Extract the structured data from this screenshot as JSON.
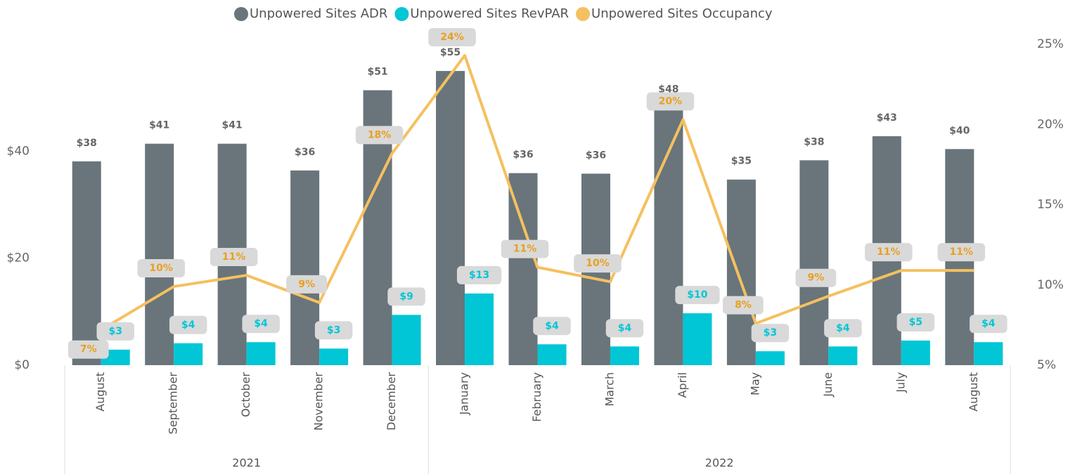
{
  "chart_data": {
    "type": "combo",
    "categories": [
      "August",
      "September",
      "October",
      "November",
      "December",
      "January",
      "February",
      "March",
      "April",
      "May",
      "June",
      "July",
      "August"
    ],
    "x_groups": [
      {
        "label": "2021",
        "count": 5
      },
      {
        "label": "2022",
        "count": 8
      }
    ],
    "series": [
      {
        "name": "Unpowered Sites ADR",
        "type": "bar",
        "color": "#69757a",
        "values": [
          38.1,
          41.4,
          41.4,
          36.4,
          51.4,
          55.0,
          35.9,
          35.8,
          48.1,
          34.7,
          38.3,
          42.8,
          40.4
        ],
        "value_labels": [
          "$38",
          "$41",
          "$41",
          "$36",
          "$51",
          "$55",
          "$36",
          "$36",
          "$48",
          "$35",
          "$38",
          "$43",
          "$40"
        ]
      },
      {
        "name": "Unpowered Sites RevPAR",
        "type": "bar",
        "color": "#00c6d6",
        "values": [
          2.9,
          4.1,
          4.3,
          3.1,
          9.4,
          13.4,
          3.9,
          3.5,
          9.7,
          2.6,
          3.5,
          4.6,
          4.3
        ],
        "value_labels": [
          "$3",
          "$4",
          "$4",
          "$3",
          "$9",
          "$13",
          "$4",
          "$4",
          "$10",
          "$3",
          "$4",
          "$5",
          "$4"
        ]
      },
      {
        "name": "Unpowered Sites Occupancy",
        "type": "line",
        "axis": "y2",
        "color": "#f5c060",
        "values": [
          7.2,
          9.9,
          10.6,
          8.9,
          18.2,
          24.3,
          11.1,
          10.2,
          20.3,
          7.6,
          9.3,
          10.9,
          10.9
        ],
        "value_labels": [
          "7%",
          "10%",
          "11%",
          "9%",
          "18%",
          "24%",
          "11%",
          "10%",
          "20%",
          "8%",
          "9%",
          "11%",
          "11%"
        ]
      }
    ],
    "ylim": [
      0,
      60
    ],
    "yticks": [
      {
        "value": 0,
        "label": "$0"
      },
      {
        "value": 20,
        "label": "$20"
      },
      {
        "value": 40,
        "label": "$40"
      }
    ],
    "y2lim": [
      5,
      25
    ],
    "y2ticks": [
      {
        "value": 5,
        "label": "5%"
      },
      {
        "value": 10,
        "label": "10%"
      },
      {
        "value": 15,
        "label": "15%"
      },
      {
        "value": 20,
        "label": "20%"
      },
      {
        "value": 25,
        "label": "25%"
      }
    ],
    "grid": false,
    "legend": "top"
  }
}
